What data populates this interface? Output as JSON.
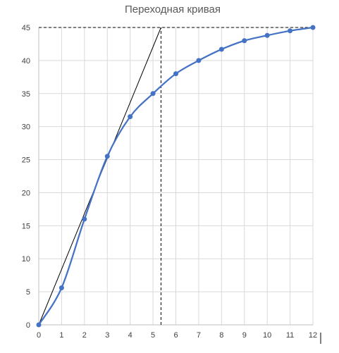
{
  "chart_data": {
    "type": "line",
    "title": "Переходная кривая",
    "xlabel": "",
    "ylabel": "",
    "xlim": [
      0,
      12
    ],
    "ylim": [
      0,
      45
    ],
    "xticks": [
      0,
      1,
      2,
      3,
      4,
      5,
      6,
      7,
      8,
      9,
      10,
      11,
      12
    ],
    "yticks": [
      0,
      5,
      10,
      15,
      20,
      25,
      30,
      35,
      40,
      45
    ],
    "grid": true,
    "legend": "none",
    "series": [
      {
        "color": "#4472C4",
        "smooth": true,
        "markers": true,
        "x": [
          0,
          1,
          2,
          3,
          4,
          5,
          6,
          7,
          8,
          9,
          10,
          11,
          12
        ],
        "y": [
          0,
          5.6,
          16,
          25.5,
          31.5,
          35,
          38,
          40,
          41.7,
          43,
          43.8,
          44.5,
          45
        ]
      }
    ],
    "tangent_line": {
      "color": "#000000",
      "x": [
        0,
        5.35
      ],
      "y": [
        0,
        45
      ]
    },
    "guide_lines": {
      "color": "#000000",
      "dashed": true,
      "horizontal": {
        "y": 45,
        "x_from": 0,
        "x_to": 12
      },
      "vertical": {
        "x": 5.35,
        "y_from": 0,
        "y_to": 45
      }
    }
  }
}
